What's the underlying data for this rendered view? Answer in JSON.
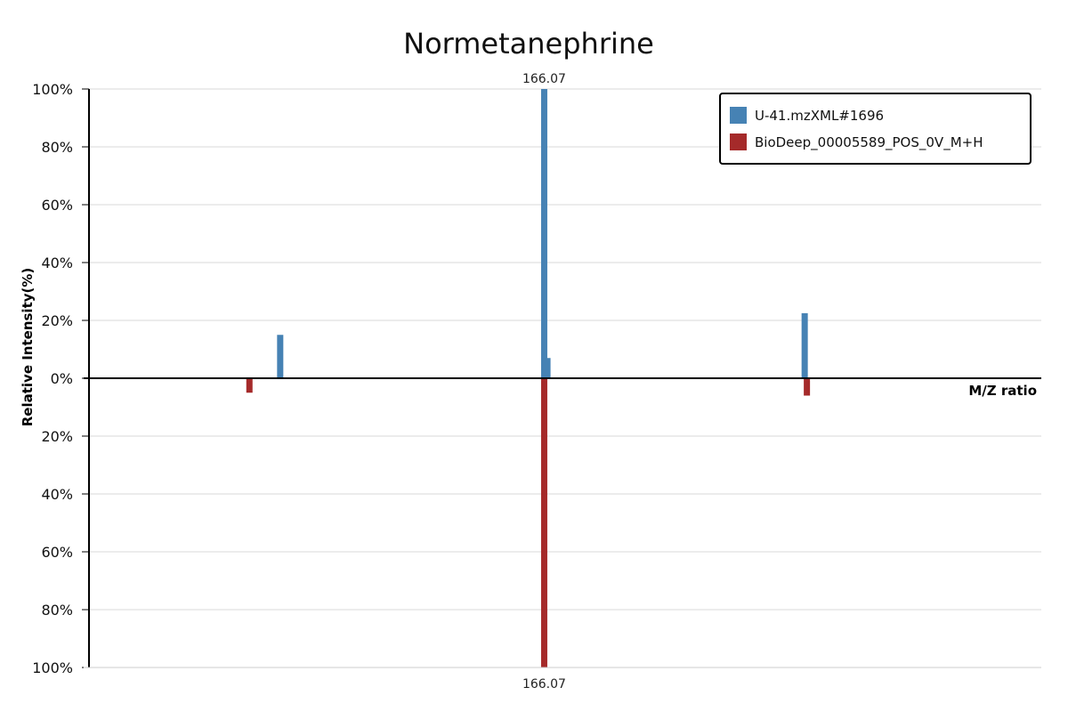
{
  "chart_data": {
    "type": "bar",
    "subtype": "mirror-mass-spectrum",
    "title": "Normetanephrine",
    "xlabel": "M/Z ratio",
    "ylabel": "Relative Intensity(%)",
    "ylim": [
      -100,
      100
    ],
    "y_ticks": [
      "100%",
      "80%",
      "60%",
      "40%",
      "20%",
      "0%",
      "20%",
      "40%",
      "60%",
      "80%",
      "100%"
    ],
    "grid": true,
    "legend_position": "top-right",
    "series": [
      {
        "name": "U-41.mzXML#1696",
        "color": "#4682b4",
        "direction": "up",
        "peaks": [
          {
            "mz": 148.05,
            "intensity": 15
          },
          {
            "mz": 166.07,
            "intensity": 100
          },
          {
            "mz": 166.29,
            "intensity": 7
          },
          {
            "mz": 183.85,
            "intensity": 22.5
          }
        ]
      },
      {
        "name": "BioDeep_00005589_POS_0V_M+H",
        "color": "#a52a2a",
        "direction": "down",
        "peaks": [
          {
            "mz": 145.95,
            "intensity": 5
          },
          {
            "mz": 166.07,
            "intensity": 100
          },
          {
            "mz": 184.0,
            "intensity": 6
          }
        ]
      }
    ],
    "x_domain": [
      135,
      200
    ],
    "peak_labels": [
      {
        "series": 0,
        "text": "166.07"
      },
      {
        "series": 1,
        "text": "166.07"
      }
    ]
  }
}
